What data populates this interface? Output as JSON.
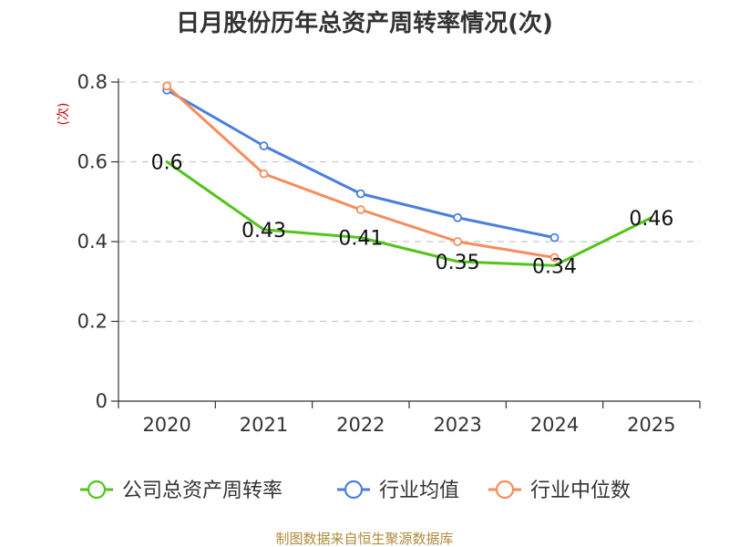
{
  "chart_data": {
    "type": "line",
    "title": "日月股份历年总资产周转率情况(次)",
    "ylabel": "(次)",
    "xlabel": "",
    "categories": [
      "2020",
      "2021",
      "2022",
      "2023",
      "2024",
      "2025"
    ],
    "ylim": [
      0,
      0.8
    ],
    "yticks": [
      "0",
      "0.2",
      "0.4",
      "0.6",
      "0.8"
    ],
    "ytick_values": [
      0,
      0.2,
      0.4,
      0.6,
      0.8
    ],
    "grid": true,
    "legend_position": "bottom",
    "series": [
      {
        "name": "公司总资产周转率",
        "color": "#52c41a",
        "values": [
          0.6,
          0.43,
          0.41,
          0.35,
          0.34,
          0.46
        ],
        "labels": [
          "0.6",
          "0.43",
          "0.41",
          "0.35",
          "0.34",
          "0.46"
        ],
        "show_markers": false
      },
      {
        "name": "行业均值",
        "color": "#4a7fdc",
        "values": [
          0.78,
          0.64,
          0.52,
          0.46,
          0.41,
          null
        ],
        "show_markers": true
      },
      {
        "name": "行业中位数",
        "color": "#f78c5a",
        "values": [
          0.79,
          0.57,
          0.48,
          0.4,
          0.36,
          null
        ],
        "show_markers": true
      }
    ]
  },
  "source": "制图数据来自恒生聚源数据库"
}
